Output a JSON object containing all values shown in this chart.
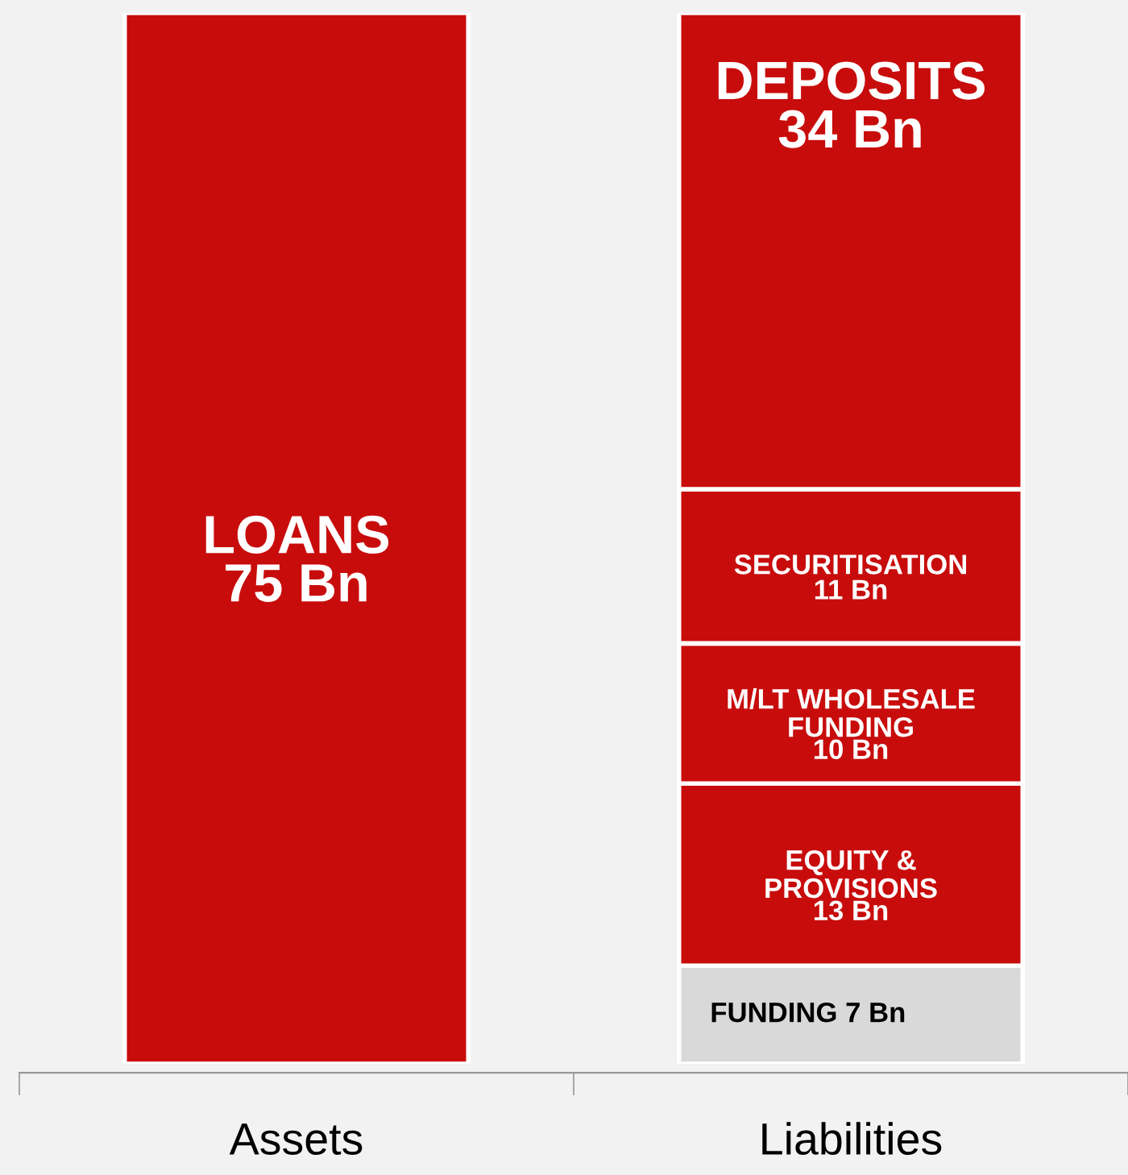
{
  "chart_data": {
    "type": "bar",
    "stacked": true,
    "categories": [
      "Assets",
      "Liabilities"
    ],
    "legend": false,
    "grid": false,
    "series": [
      {
        "name": "LOANS",
        "color": "#c80c0c",
        "values": [
          75,
          null
        ],
        "value_labels": [
          "75 Bn",
          null
        ]
      },
      {
        "name": "FUNDING",
        "color": "#d9d9d9",
        "values": [
          null,
          7
        ],
        "value_labels": [
          null,
          "7 Bn"
        ]
      },
      {
        "name": "EQUITY &\nPROVISIONS",
        "color": "#c80c0c",
        "values": [
          null,
          13
        ],
        "value_labels": [
          null,
          "13 Bn"
        ]
      },
      {
        "name": "M/LT WHOLESALE\nFUNDING",
        "color": "#c80c0c",
        "values": [
          null,
          10
        ],
        "value_labels": [
          null,
          "10 Bn"
        ]
      },
      {
        "name": "SECURITISATION",
        "color": "#c80c0c",
        "values": [
          null,
          11
        ],
        "value_labels": [
          null,
          "11 Bn"
        ]
      },
      {
        "name": "DEPOSITS",
        "color": "#c80c0c",
        "values": [
          null,
          34
        ],
        "value_labels": [
          null,
          "34 Bn"
        ]
      }
    ]
  }
}
